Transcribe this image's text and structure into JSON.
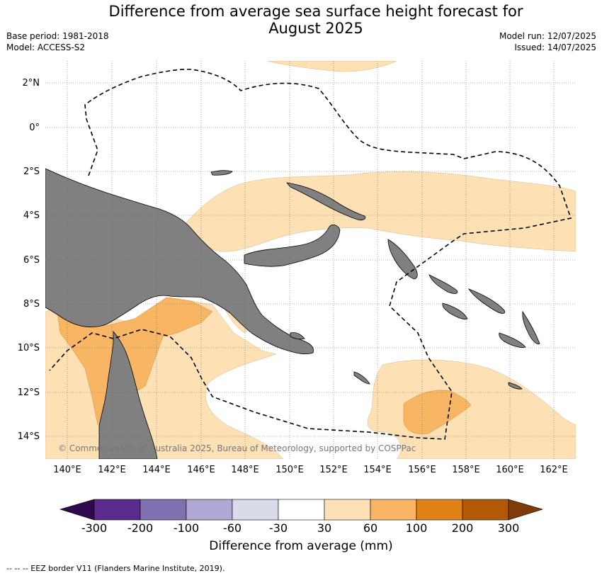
{
  "header": {
    "title_line1": "Difference from average sea surface height forecast for",
    "title_line2": "August 2025",
    "base_period": "Base period: 1981-2018",
    "model": "Model: ACCESS-S2",
    "model_run": "Model run: 12/07/2025",
    "issued": "Issued: 14/07/2025"
  },
  "map": {
    "lat_ticks": [
      "2°N",
      "0°",
      "2°S",
      "4°S",
      "6°S",
      "8°S",
      "10°S",
      "12°S",
      "14°S"
    ],
    "lon_ticks": [
      "140°E",
      "142°E",
      "144°E",
      "146°E",
      "148°E",
      "150°E",
      "152°E",
      "154°E",
      "156°E",
      "158°E",
      "160°E",
      "162°E"
    ],
    "copyright": "© Commonwealth of Australia 2025, Bureau of Meteorology, supported by COSPPac",
    "colors": {
      "land": "#808080",
      "ocean": "#ffffff",
      "band_30_60": "#fde0b4",
      "band_60_100": "#f8b563",
      "gridline": "#666666",
      "eez": "#000000"
    }
  },
  "colorbar": {
    "labels": [
      "-300",
      "-200",
      "-100",
      "-60",
      "-30",
      "30",
      "60",
      "100",
      "200",
      "300"
    ],
    "colors": [
      "#2d0a4e",
      "#5a2a8c",
      "#8070b0",
      "#b0a8d2",
      "#d8dcea",
      "#ffffff",
      "#fde0b4",
      "#f8b563",
      "#e08214",
      "#b35806",
      "#7f3b08"
    ],
    "title": "Difference from average (mm)"
  },
  "footnote": "--  --  -- EEZ border V11 (Flanders Marine Institute, 2019)."
}
